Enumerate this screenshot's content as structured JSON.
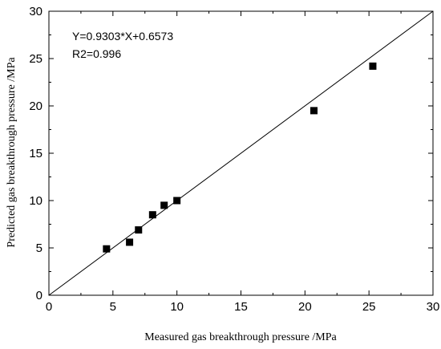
{
  "chart_data": {
    "type": "scatter",
    "xlabel": "Measured gas breakthrough pressure /MPa",
    "ylabel": "Predicted gas breakthrough pressure /MPa",
    "xlim": [
      0,
      30
    ],
    "ylim": [
      0,
      30
    ],
    "x_ticks": [
      "0",
      "5",
      "10",
      "15",
      "20",
      "25",
      "30"
    ],
    "y_ticks": [
      "0",
      "5",
      "10",
      "15",
      "20",
      "25",
      "30"
    ],
    "grid": false,
    "legend": "none",
    "annotations": [
      "Y=0.9303*X+0.6573",
      "R2=0.996"
    ],
    "reference_line": {
      "from": [
        0,
        0
      ],
      "to": [
        30,
        30
      ]
    },
    "points": [
      {
        "x": 4.5,
        "y": 4.9
      },
      {
        "x": 6.3,
        "y": 5.6
      },
      {
        "x": 7.0,
        "y": 6.9
      },
      {
        "x": 8.1,
        "y": 8.5
      },
      {
        "x": 9.0,
        "y": 9.5
      },
      {
        "x": 10.0,
        "y": 10.0
      },
      {
        "x": 20.7,
        "y": 19.5
      },
      {
        "x": 25.3,
        "y": 24.2
      }
    ],
    "marker_color": "#000000"
  }
}
